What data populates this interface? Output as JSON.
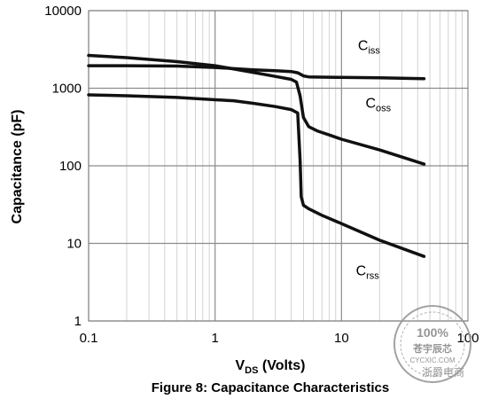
{
  "chart_data": {
    "type": "line",
    "x_scale": "log",
    "y_scale": "log",
    "xlim": [
      0.1,
      100
    ],
    "ylim": [
      1,
      10000
    ],
    "grid": true,
    "legend": "inline labels beside each curve",
    "x_ticks": [
      "0.1",
      "1",
      "10",
      "100"
    ],
    "y_ticks": [
      "1",
      "10",
      "100",
      "1000",
      "10000"
    ],
    "xlabel": {
      "main": "V",
      "sub": "DS",
      "rest": " (Volts)"
    },
    "ylabel": "Capacitance (pF)",
    "caption": "Figure 8: Capacitance Characteristics",
    "series": [
      {
        "id": "ciss",
        "label": {
          "main": "C",
          "sub": "iss"
        },
        "x": [
          0.1,
          0.2,
          0.5,
          1,
          2,
          3,
          4,
          4.5,
          5,
          5.5,
          7,
          10,
          20,
          45
        ],
        "y": [
          1950,
          1950,
          1930,
          1850,
          1730,
          1680,
          1640,
          1580,
          1440,
          1400,
          1390,
          1380,
          1360,
          1330
        ]
      },
      {
        "id": "coss",
        "label": {
          "main": "C",
          "sub": "oss"
        },
        "x": [
          0.1,
          0.2,
          0.5,
          1,
          2,
          3,
          4,
          4.4,
          4.7,
          5,
          5.5,
          6.5,
          8,
          10,
          20,
          45
        ],
        "y": [
          2650,
          2480,
          2200,
          1950,
          1600,
          1420,
          1300,
          1200,
          800,
          420,
          320,
          280,
          250,
          220,
          160,
          105
        ]
      },
      {
        "id": "crss",
        "label": {
          "main": "C",
          "sub": "rss"
        },
        "x": [
          0.1,
          0.2,
          0.5,
          1,
          1.4,
          2,
          3,
          4,
          4.5,
          4.7,
          4.8,
          5,
          5.5,
          7,
          10,
          20,
          45
        ],
        "y": [
          820,
          800,
          760,
          710,
          690,
          640,
          580,
          530,
          480,
          120,
          40,
          31,
          28,
          23,
          18,
          11,
          6.8
        ]
      }
    ]
  },
  "watermark": {
    "center_text": "100%",
    "brand_text": "苍宇辰芯",
    "domain_text": "CYCXIC.COM",
    "footer_text": "浙爵电商",
    "color": "#8a8a8a"
  }
}
